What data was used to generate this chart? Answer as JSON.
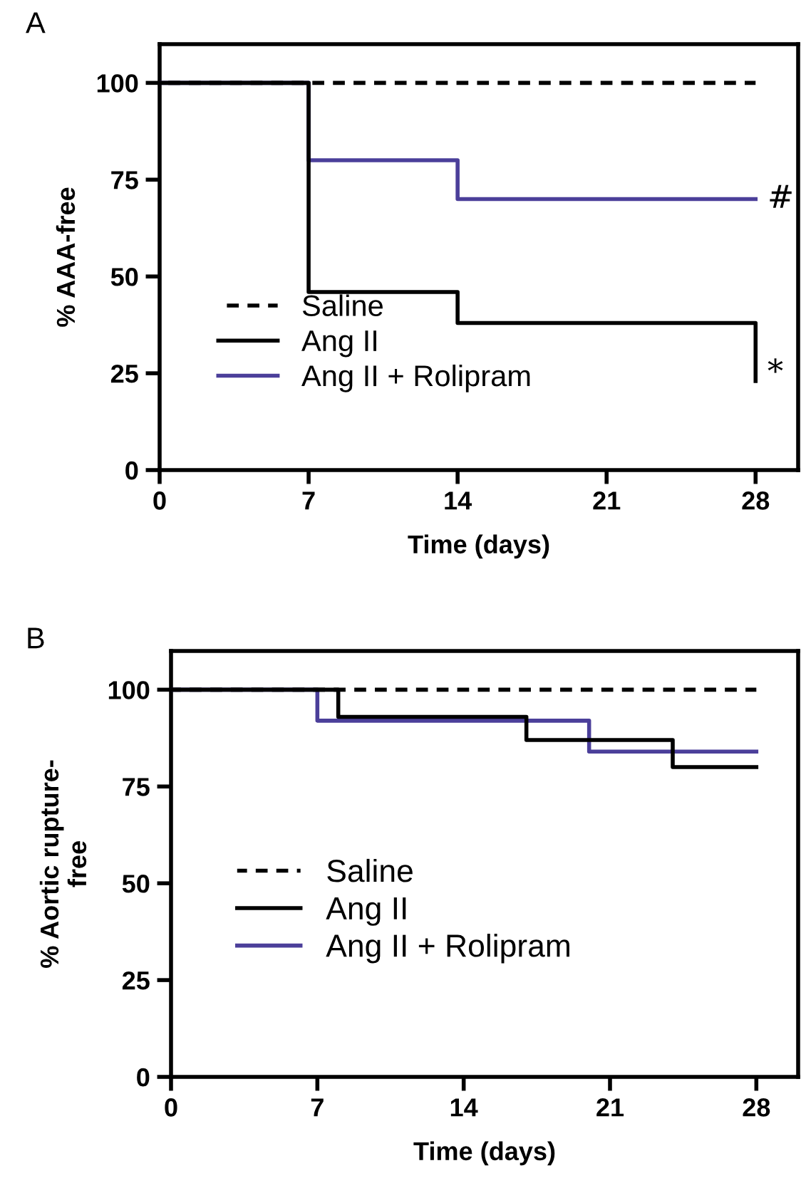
{
  "chart_data": [
    {
      "type": "step",
      "title": "A",
      "xlabel": "Time (days)",
      "ylabel": "% AAA-free",
      "xlim": [
        0,
        30
      ],
      "ylim": [
        0,
        110
      ],
      "xticks": [
        0,
        7,
        14,
        21,
        28
      ],
      "yticks": [
        0,
        25,
        50,
        75,
        100
      ],
      "legend": "lower left",
      "grid": false,
      "series": [
        {
          "name": "Saline",
          "color": "#000000",
          "line_style": "dashed",
          "x": [
            0,
            28
          ],
          "values": [
            100,
            100
          ]
        },
        {
          "name": "Ang II",
          "color": "#000000",
          "line_style": "solid",
          "x": [
            0,
            7,
            14,
            28
          ],
          "values": [
            100,
            46,
            38,
            23
          ]
        },
        {
          "name": "Ang II + Rolipram",
          "color": "#4b3f9a",
          "line_style": "solid",
          "x": [
            0,
            7,
            14,
            28
          ],
          "values": [
            100,
            80,
            70,
            70
          ]
        }
      ],
      "annotations": [
        {
          "text": "#",
          "x": 28,
          "y": 70
        },
        {
          "text": "*",
          "x": 28,
          "y": 25
        }
      ]
    },
    {
      "type": "step",
      "title": "B",
      "xlabel": "Time (days)",
      "ylabel": "% Aortic rupture-\nfree",
      "xlim": [
        0,
        30
      ],
      "ylim": [
        0,
        110
      ],
      "xticks": [
        0,
        7,
        14,
        21,
        28
      ],
      "yticks": [
        0,
        25,
        50,
        75,
        100
      ],
      "legend": "center left",
      "grid": false,
      "series": [
        {
          "name": "Saline",
          "color": "#000000",
          "line_style": "dashed",
          "x": [
            0,
            28
          ],
          "values": [
            100,
            100
          ]
        },
        {
          "name": "Ang II",
          "color": "#000000",
          "line_style": "solid",
          "x": [
            0,
            8,
            17,
            24,
            28
          ],
          "values": [
            100,
            93,
            87,
            80,
            80
          ]
        },
        {
          "name": "Ang II + Rolipram",
          "color": "#4b3f9a",
          "line_style": "solid",
          "x": [
            0,
            7,
            20,
            28
          ],
          "values": [
            100,
            92,
            84,
            84
          ]
        }
      ]
    }
  ]
}
